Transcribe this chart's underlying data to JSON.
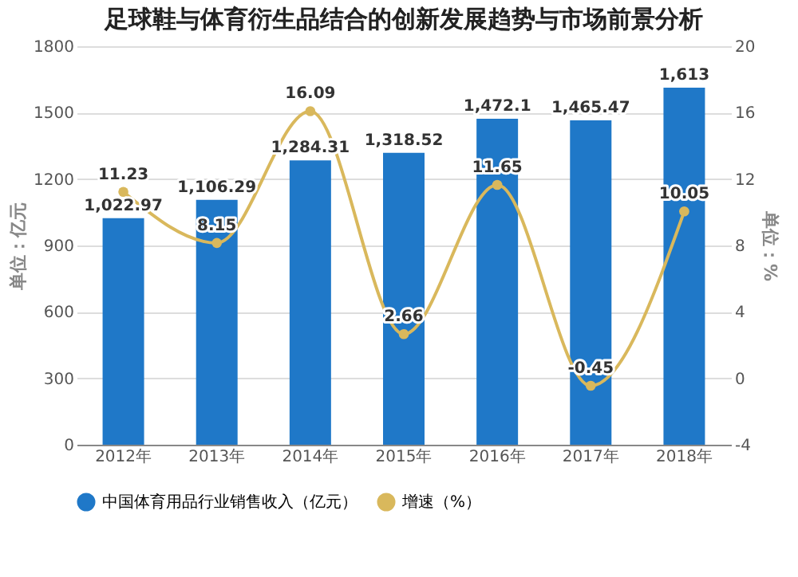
{
  "chart_data": {
    "type": "bar",
    "title": "足球鞋与体育衍生品结合的创新发展趋势与市场前景分析",
    "categories": [
      "2012年",
      "2013年",
      "2014年",
      "2015年",
      "2016年",
      "2017年",
      "2018年"
    ],
    "series": [
      {
        "name": "中国体育用品行业销售收入（亿元）",
        "color": "#1f78c8",
        "values": [
          1022.97,
          1106.29,
          1284.31,
          1318.52,
          1472.1,
          1465.47,
          1613
        ],
        "value_labels": [
          "1,022.97",
          "1,106.29",
          "1,284.31",
          "1,318.52",
          "1,472.1",
          "1,465.47",
          "1,613"
        ]
      },
      {
        "name": "增速（%）",
        "type": "line",
        "axis": "y2",
        "color": "#d9b85c",
        "marker": "circle",
        "values": [
          11.23,
          8.15,
          16.09,
          2.66,
          11.65,
          -0.45,
          10.05
        ],
        "value_labels": [
          "11.23",
          "8.15",
          "16.09",
          "2.66",
          "11.65",
          "-0.45",
          "10.05"
        ]
      }
    ],
    "ylabel": "单位：亿元",
    "y2label": "单位：%",
    "ylim": [
      0,
      1800
    ],
    "yticks": [
      0,
      300,
      600,
      900,
      1200,
      1500,
      1800
    ],
    "y2lim": [
      -4,
      20
    ],
    "y2ticks": [
      -4,
      0,
      4,
      8,
      12,
      16,
      20
    ],
    "grid": "y",
    "legend": "bottom"
  }
}
